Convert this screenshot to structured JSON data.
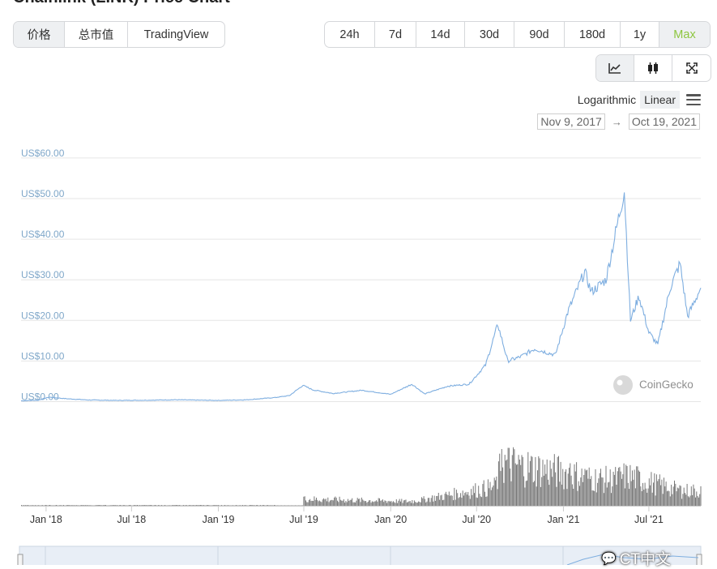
{
  "page": {
    "title": "Chainlink (LINK) Price Chart"
  },
  "view_tabs": [
    {
      "label": "价格",
      "active": true
    },
    {
      "label": "总市值",
      "active": false
    },
    {
      "label": "TradingView",
      "active": false
    }
  ],
  "range_tabs": [
    {
      "label": "24h"
    },
    {
      "label": "7d"
    },
    {
      "label": "14d"
    },
    {
      "label": "30d"
    },
    {
      "label": "90d"
    },
    {
      "label": "180d"
    },
    {
      "label": "1y"
    },
    {
      "label": "Max",
      "active": true
    }
  ],
  "chart_tools": [
    {
      "icon": "line-chart-icon",
      "active": true
    },
    {
      "icon": "candlestick-icon",
      "active": false
    },
    {
      "icon": "fullscreen-icon",
      "active": false
    }
  ],
  "scale": {
    "options": [
      "Logarithmic",
      "Linear"
    ],
    "selected": "Linear"
  },
  "date_range": {
    "from": "Nov 9, 2017",
    "to": "Oct 19, 2021"
  },
  "watermark": {
    "text": "CoinGecko"
  },
  "overlay": {
    "text": "CT中文"
  },
  "colors": {
    "price_line": "#7eaee0",
    "volume": "#777777",
    "accent_green": "#8dc63f",
    "axis_label": "#7fa7c9"
  },
  "chart_data": {
    "type": "line",
    "title": "",
    "xlabel": "",
    "ylabel": "",
    "ylim": [
      0,
      60
    ],
    "y_ticks": [
      "US$0.00",
      "US$10.00",
      "US$20.00",
      "US$30.00",
      "US$40.00",
      "US$50.00",
      "US$60.00"
    ],
    "y_tick_values": [
      0,
      10,
      20,
      30,
      40,
      50,
      60
    ],
    "x_ticks": [
      "Jan '18",
      "Jul '18",
      "Jan '19",
      "Jul '19",
      "Jan '20",
      "Jul '20",
      "Jan '21",
      "Jul '21"
    ],
    "x_tick_dates": [
      "2018-01-01",
      "2018-07-01",
      "2019-01-01",
      "2019-07-01",
      "2020-01-01",
      "2020-07-01",
      "2021-01-01",
      "2021-07-01"
    ],
    "x_range": [
      "2017-11-09",
      "2021-10-19"
    ],
    "series": [
      {
        "values": [
          [
            "2017-11-09",
            0.2
          ],
          [
            "2017-12-15",
            0.35
          ],
          [
            "2018-01-07",
            1.1
          ],
          [
            "2018-02-15",
            0.7
          ],
          [
            "2018-04-01",
            0.4
          ],
          [
            "2018-06-01",
            0.3
          ],
          [
            "2018-08-01",
            0.35
          ],
          [
            "2018-10-01",
            0.45
          ],
          [
            "2019-01-01",
            0.3
          ],
          [
            "2019-03-01",
            0.45
          ],
          [
            "2019-05-01",
            1.0
          ],
          [
            "2019-06-01",
            1.5
          ],
          [
            "2019-06-29",
            4.0
          ],
          [
            "2019-07-20",
            2.9
          ],
          [
            "2019-09-01",
            2.0
          ],
          [
            "2019-11-01",
            2.8
          ],
          [
            "2020-01-01",
            1.8
          ],
          [
            "2020-02-15",
            4.3
          ],
          [
            "2020-03-13",
            1.9
          ],
          [
            "2020-05-01",
            3.8
          ],
          [
            "2020-06-15",
            4.3
          ],
          [
            "2020-07-20",
            9.0
          ],
          [
            "2020-08-15",
            19.0
          ],
          [
            "2020-09-05",
            10.0
          ],
          [
            "2020-10-01",
            11.0
          ],
          [
            "2020-11-01",
            13.0
          ],
          [
            "2020-12-15",
            11.5
          ],
          [
            "2021-01-10",
            22.0
          ],
          [
            "2021-02-15",
            32.0
          ],
          [
            "2021-03-01",
            27.0
          ],
          [
            "2021-04-01",
            30.0
          ],
          [
            "2021-05-10",
            52.0
          ],
          [
            "2021-05-23",
            20.0
          ],
          [
            "2021-06-10",
            26.0
          ],
          [
            "2021-07-01",
            17.0
          ],
          [
            "2021-07-20",
            14.0
          ],
          [
            "2021-08-15",
            28.0
          ],
          [
            "2021-09-05",
            34.0
          ],
          [
            "2021-09-21",
            21.0
          ],
          [
            "2021-10-19",
            28.0
          ]
        ]
      }
    ],
    "volume": {
      "name": "",
      "values": [
        [
          "2019-06-29",
          0.16
        ],
        [
          "2020-02-15",
          0.1
        ],
        [
          "2020-08-10",
          0.45
        ],
        [
          "2020-08-22",
          1.0
        ],
        [
          "2021-01-15",
          0.75
        ],
        [
          "2021-02-15",
          0.65
        ],
        [
          "2021-04-15",
          0.6
        ],
        [
          "2021-05-15",
          0.7
        ],
        [
          "2021-09-05",
          0.35
        ]
      ]
    }
  }
}
